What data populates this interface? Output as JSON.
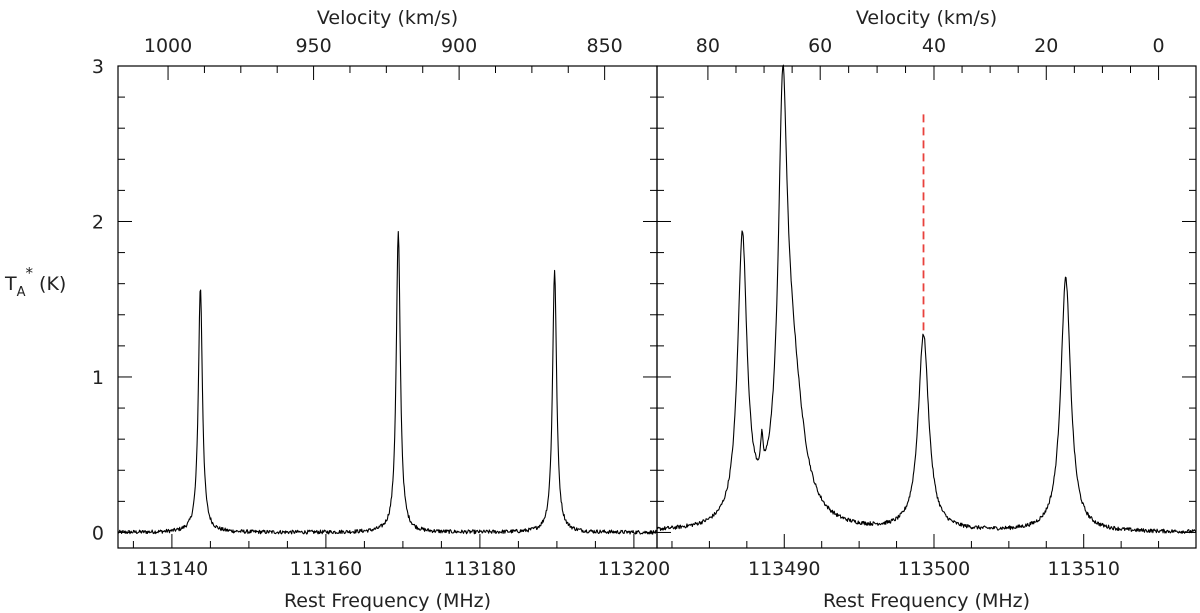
{
  "chart_data": {
    "type": "line",
    "ylabel_main": "T",
    "ylabel_sub": "A",
    "ylabel_sup": "*",
    "ylabel_unit": " (K)",
    "ylim": [
      -0.1,
      3.0
    ],
    "y_ticks": [
      0,
      1,
      2,
      3
    ],
    "y_tick_labels": [
      "0",
      "1",
      "2",
      "3"
    ],
    "panels": [
      {
        "xlabel": "Rest Frequency (MHz)",
        "top_label": "Velocity (km/s)",
        "xlim": [
          113133,
          113203
        ],
        "x_ticks": [
          113140,
          113160,
          113180,
          113200
        ],
        "x_tick_labels": [
          "113140",
          "113160",
          "113180",
          "113200"
        ],
        "top_ticks": [
          1000,
          950,
          900,
          850
        ],
        "top_tick_labels": [
          "1000",
          "950",
          "900",
          "850"
        ],
        "top_tick_freq": [
          113139.5,
          113158.4,
          113177.3,
          113196.2
        ],
        "series": [
          {
            "baseline": 0.0,
            "peaks": [
              {
                "x": 113143.7,
                "height": 1.58,
                "width": 0.32
              },
              {
                "x": 113169.4,
                "height": 1.93,
                "width": 0.32
              },
              {
                "x": 113189.7,
                "height": 1.69,
                "width": 0.32
              }
            ]
          }
        ]
      },
      {
        "xlabel": "Rest Frequency (MHz)",
        "top_label": "Velocity (km/s)",
        "xlim": [
          113481.5,
          113517.5
        ],
        "x_ticks": [
          113490,
          113500,
          113510
        ],
        "x_tick_labels": [
          "113490",
          "113500",
          "113510"
        ],
        "top_ticks": [
          80,
          60,
          40,
          20,
          0
        ],
        "top_tick_labels": [
          "80",
          "60",
          "40",
          "20",
          "0"
        ],
        "top_tick_freq": [
          113484.9,
          113492.4,
          113500.0,
          113507.5,
          113515.0
        ],
        "series": [
          {
            "baseline": 0.0,
            "peaks": [
              {
                "x": 113487.2,
                "height": 1.83,
                "width": 0.38
              },
              {
                "x": 113488.5,
                "height": 0.21,
                "width": 0.1
              },
              {
                "x": 113489.9,
                "height": 2.3,
                "width": 0.35
              },
              {
                "x": 113490.5,
                "height": 0.95,
                "width": 0.9
              },
              {
                "x": 113499.3,
                "height": 1.26,
                "width": 0.42
              },
              {
                "x": 113508.8,
                "height": 1.63,
                "width": 0.4
              }
            ]
          }
        ],
        "marker_line": {
          "x": 113499.3,
          "y0": 1.3,
          "y1": 2.7,
          "color": "#e8413c",
          "style": "dashed"
        }
      }
    ]
  }
}
